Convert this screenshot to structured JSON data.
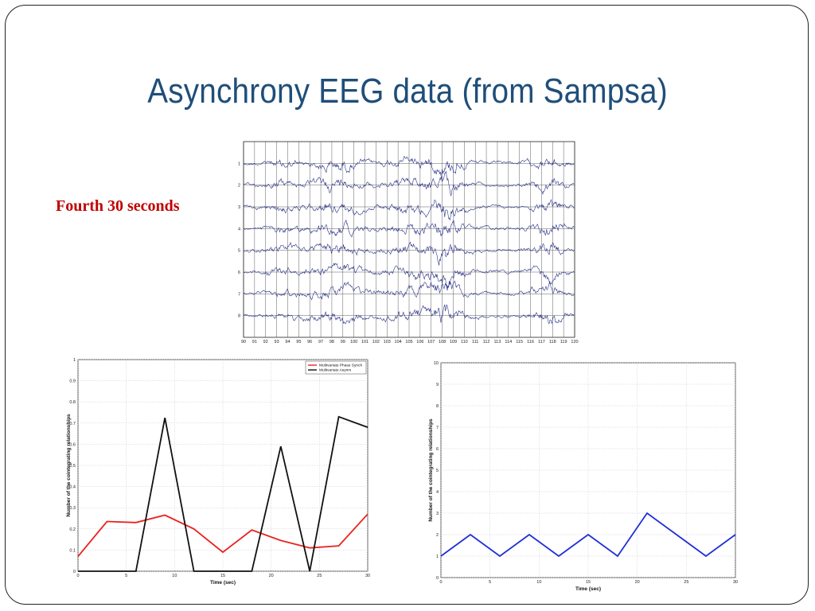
{
  "slide": {
    "title": "Asynchrony EEG data (from Sampsa)",
    "caption": "Fourth 30 seconds"
  },
  "colors": {
    "title": "#1f4e79",
    "caption": "#c00000",
    "eeg_trace": "#1a237e",
    "phase_synch": "#e8231f",
    "asynch": "#111111",
    "cointegration": "#1f2fd6"
  },
  "chart_data": [
    {
      "type": "line",
      "id": "eeg",
      "title": "",
      "xlabel": "",
      "ylabel": "",
      "x_ticks": [
        "90",
        "91",
        "92",
        "93",
        "94",
        "95",
        "96",
        "97",
        "98",
        "99",
        "100",
        "101",
        "102",
        "103",
        "104",
        "105",
        "106",
        "107",
        "108",
        "109",
        "110",
        "111",
        "112",
        "113",
        "114",
        "115",
        "116",
        "117",
        "118",
        "119",
        "120"
      ],
      "channels": [
        "1",
        "2",
        "3",
        "4",
        "5",
        "6",
        "7",
        "8"
      ],
      "grid": true
    },
    {
      "type": "line",
      "id": "synch",
      "title": "",
      "xlabel": "Time (sec)",
      "ylabel": "Number of the cointegrating relationships",
      "xlim": [
        0,
        30
      ],
      "ylim": [
        0,
        1
      ],
      "x_ticks": [
        "0",
        "5",
        "10",
        "15",
        "20",
        "25",
        "30"
      ],
      "y_ticks": [
        "0",
        "0.1",
        "0.2",
        "0.3",
        "0.4",
        "0.5",
        "0.6",
        "0.7",
        "0.8",
        "0.9",
        "1"
      ],
      "grid": true,
      "legend": "top-right",
      "series": [
        {
          "name": "Multivariate Phase Synch",
          "color": "#e8231f",
          "x": [
            0,
            3,
            6,
            9,
            12,
            15,
            18,
            21,
            24,
            27,
            30
          ],
          "y": [
            0.07,
            0.235,
            0.23,
            0.265,
            0.2,
            0.09,
            0.195,
            0.145,
            0.11,
            0.12,
            0.27
          ]
        },
        {
          "name": "Multivariate Asynm",
          "color": "#111111",
          "x": [
            0,
            3,
            6,
            9,
            12,
            15,
            18,
            21,
            24,
            27,
            30
          ],
          "y": [
            0,
            0,
            0,
            0.725,
            0,
            0,
            0,
            0.59,
            0,
            0.73,
            0.68
          ]
        }
      ]
    },
    {
      "type": "line",
      "id": "coint",
      "title": "",
      "xlabel": "Time (sec)",
      "ylabel": "Number of the cointegrating relationships",
      "xlim": [
        0,
        30
      ],
      "ylim": [
        0,
        10
      ],
      "x_ticks": [
        "0",
        "5",
        "10",
        "15",
        "20",
        "25",
        "30"
      ],
      "y_ticks": [
        "0",
        "1",
        "2",
        "3",
        "4",
        "5",
        "6",
        "7",
        "8",
        "9",
        "10"
      ],
      "grid": true,
      "series": [
        {
          "color": "#1f2fd6",
          "x": [
            0,
            3,
            6,
            9,
            12,
            15,
            18,
            21,
            24,
            27,
            30
          ],
          "y": [
            1,
            2,
            1,
            2,
            1,
            2,
            1,
            3,
            2,
            1,
            2
          ]
        }
      ]
    }
  ]
}
